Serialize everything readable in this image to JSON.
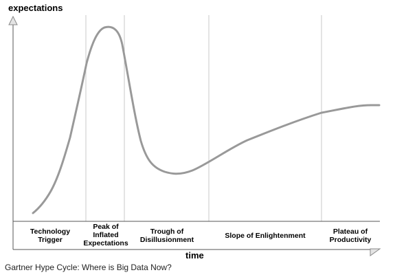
{
  "diagram": {
    "y_axis_label": "expectations",
    "x_axis_label": "time",
    "caption": "Gartner Hype Cycle: Where is Big Data Now?",
    "colors": {
      "curve": "#999999",
      "gridline": "#c8c8c8",
      "axis": "#555555",
      "arrow_fill": "#e4e4e4"
    },
    "phases": [
      {
        "label": "Technology\nTrigger"
      },
      {
        "label": "Peak of\nInflated\nExpectations"
      },
      {
        "label": "Trough of\nDisillusionment"
      },
      {
        "label": "Slope of Enlightenment"
      },
      {
        "label": "Plateau of\nProductivity"
      }
    ]
  }
}
